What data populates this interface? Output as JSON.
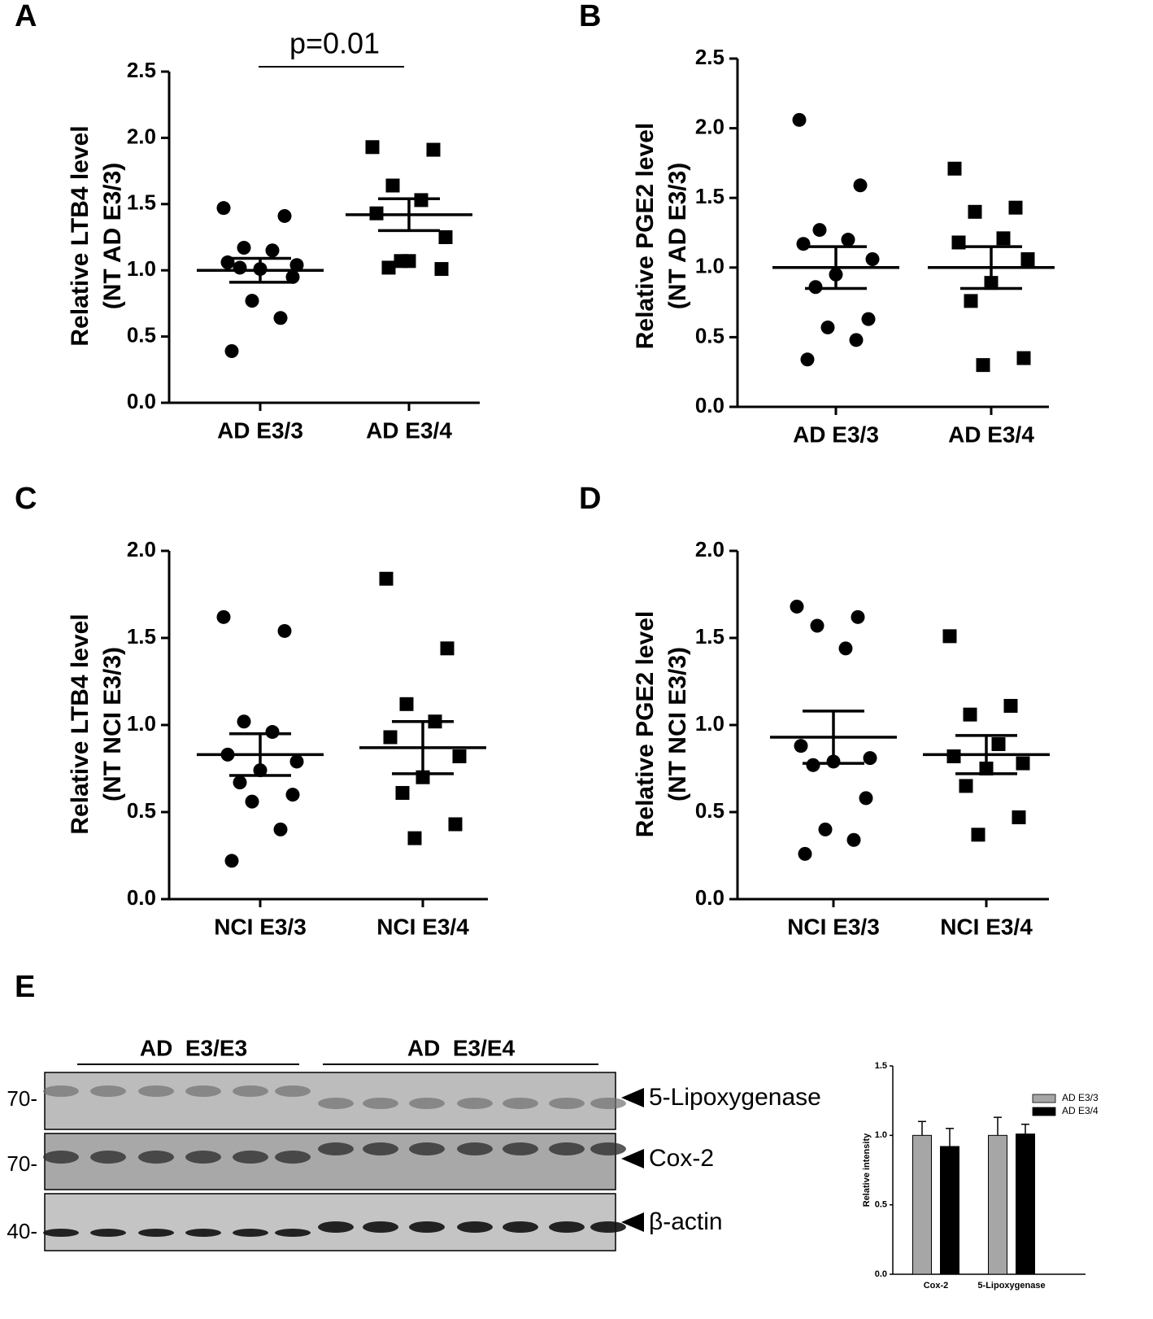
{
  "chart_data": [
    {
      "type": "scatter",
      "label": "A",
      "annotation": "p=0.01",
      "ylabel": [
        "Relative LTB4 level",
        "(NT AD E3/3)"
      ],
      "categories": [
        "AD E3/3",
        "AD E3/4"
      ],
      "groups": [
        {
          "marker": "circle",
          "color": "#000000",
          "values": [
            1.47,
            1.41,
            1.17,
            1.15,
            1.06,
            1.04,
            1.01,
            1.02,
            0.95,
            0.77,
            0.64,
            0.39
          ],
          "mean": 1.0,
          "sem": 0.09
        },
        {
          "marker": "square",
          "color": "#000000",
          "values": [
            1.93,
            1.91,
            1.64,
            1.53,
            1.43,
            1.25,
            1.07,
            1.02,
            1.01,
            1.07
          ],
          "mean": 1.42,
          "sem": 0.12
        }
      ],
      "ylim": [
        0,
        2.5
      ],
      "yticks": [
        {
          "value": 0,
          "label": "0.0"
        },
        0.5,
        {
          "value": 1,
          "label": "1.0"
        },
        1.5,
        {
          "value": 2,
          "label": "2.0"
        },
        2.5
      ]
    },
    {
      "type": "scatter",
      "label": "B",
      "ylabel": [
        "Relative PGE2 level",
        "(NT AD E3/3)"
      ],
      "categories": [
        "AD E3/3",
        "AD E3/4"
      ],
      "groups": [
        {
          "marker": "circle",
          "color": "#000000",
          "values": [
            2.06,
            1.59,
            1.27,
            1.2,
            1.17,
            1.06,
            0.95,
            0.86,
            0.63,
            0.57,
            0.48,
            0.34
          ],
          "mean": 1.0,
          "sem": 0.15
        },
        {
          "marker": "square",
          "color": "#000000",
          "values": [
            1.71,
            1.43,
            1.4,
            1.21,
            1.18,
            1.06,
            0.89,
            0.76,
            0.35,
            0.3
          ],
          "mean": 1.0,
          "sem": 0.15
        }
      ],
      "ylim": [
        0,
        2.5
      ],
      "yticks": [
        {
          "value": 0,
          "label": "0.0"
        },
        0.5,
        {
          "value": 1,
          "label": "1.0"
        },
        1.5,
        {
          "value": 2,
          "label": "2.0"
        },
        2.5
      ]
    },
    {
      "type": "scatter",
      "label": "C",
      "ylabel": [
        "Relative LTB4 level",
        "(NT NCI E3/3)"
      ],
      "categories": [
        "NCI E3/3",
        "NCI E3/4"
      ],
      "groups": [
        {
          "marker": "circle",
          "color": "#000000",
          "values": [
            1.62,
            1.54,
            1.02,
            0.96,
            0.83,
            0.79,
            0.74,
            0.67,
            0.6,
            0.56,
            0.4,
            0.22
          ],
          "mean": 0.83,
          "sem": 0.12
        },
        {
          "marker": "square",
          "color": "#000000",
          "values": [
            1.84,
            1.44,
            1.12,
            1.02,
            0.93,
            0.82,
            0.7,
            0.61,
            0.43,
            0.35
          ],
          "mean": 0.87,
          "sem": 0.15
        }
      ],
      "ylim": [
        0,
        2
      ],
      "yticks": [
        {
          "value": 0,
          "label": "0.0"
        },
        0.5,
        {
          "value": 1,
          "label": "1.0"
        },
        1.5,
        {
          "value": 2,
          "label": "2.0"
        }
      ]
    },
    {
      "type": "scatter",
      "label": "D",
      "ylabel": [
        "Relative PGE2 level",
        "(NT NCI E3/3)"
      ],
      "categories": [
        "NCI E3/3",
        "NCI E3/4"
      ],
      "groups": [
        {
          "marker": "circle",
          "color": "#000000",
          "values": [
            1.68,
            1.62,
            1.57,
            1.44,
            0.88,
            0.81,
            0.79,
            0.77,
            0.58,
            0.4,
            0.34,
            0.26
          ],
          "mean": 0.93,
          "sem": 0.15
        },
        {
          "marker": "square",
          "color": "#000000",
          "values": [
            1.51,
            1.11,
            1.06,
            0.89,
            0.82,
            0.78,
            0.75,
            0.65,
            0.47,
            0.37
          ],
          "mean": 0.83,
          "sem": 0.11
        }
      ],
      "ylim": [
        0,
        2
      ],
      "yticks": [
        {
          "value": 0,
          "label": "0.0"
        },
        0.5,
        {
          "value": 1,
          "label": "1.0"
        },
        1.5,
        {
          "value": 2,
          "label": "2.0"
        }
      ]
    },
    {
      "type": "bar",
      "label": "E",
      "ylabel": "Relative intensity",
      "categories": [
        "Cox-2",
        "5-Lipoxygenase"
      ],
      "series": [
        {
          "name": "AD E3/3",
          "color": "#a6a6a6",
          "values": [
            1.0,
            1.0
          ],
          "errors": [
            0.1,
            0.13
          ]
        },
        {
          "name": "AD E3/4",
          "color": "#000000",
          "values": [
            0.92,
            1.01
          ],
          "errors": [
            0.13,
            0.07
          ]
        }
      ],
      "ylim": [
        0,
        1.5
      ],
      "yticks": [
        {
          "value": 0,
          "label": "0.0"
        },
        0.5,
        {
          "value": 1,
          "label": "1.0"
        },
        1.5
      ],
      "legend": "upper right"
    }
  ],
  "blot": {
    "groups": [
      "AD  E3/E3",
      "AD  E3/E4"
    ],
    "markers": [
      "70-",
      "70-",
      "40-"
    ],
    "proteins": [
      "5-Lipoxygenase",
      "Cox-2",
      "β-actin"
    ]
  }
}
